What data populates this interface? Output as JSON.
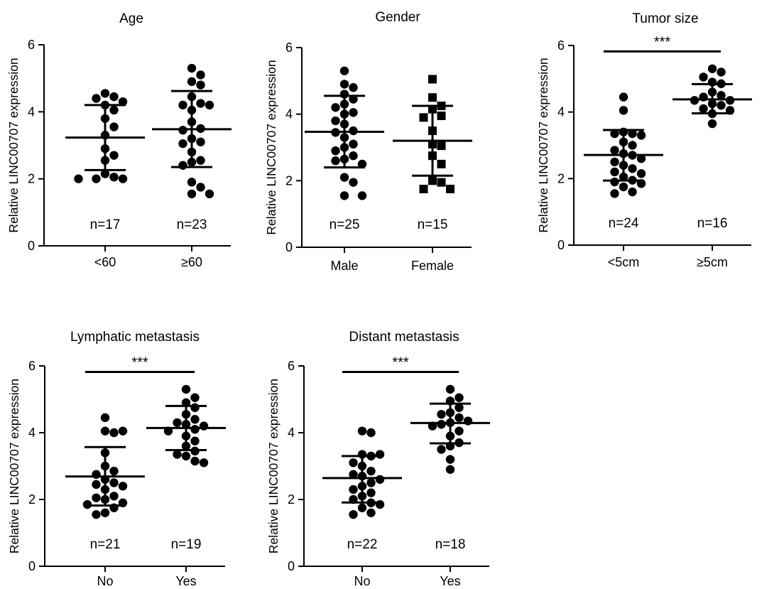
{
  "chart_data": [
    {
      "type": "scatter",
      "title": "Age",
      "ylabel": "Relative LINC00707 expression",
      "ylim": [
        0,
        6
      ],
      "yticks": [
        0,
        2,
        4,
        6
      ],
      "categories": [
        "<60",
        "≥60"
      ],
      "n_labels": [
        "n=17",
        "n=23"
      ],
      "marker": "circle",
      "significance": "",
      "groups": [
        {
          "values": [
            4.55,
            4.45,
            4.4,
            4.3,
            4.2,
            4.05,
            3.8,
            3.55,
            3.3,
            2.9,
            2.7,
            2.55,
            2.15,
            2.05,
            2.0,
            2.0,
            2.0
          ],
          "mean": 3.23,
          "sd_low": 2.26,
          "sd_high": 4.2
        },
        {
          "values": [
            5.3,
            5.1,
            4.9,
            4.8,
            4.45,
            4.25,
            4.2,
            4.2,
            4.05,
            3.7,
            3.5,
            3.45,
            3.2,
            3.1,
            3.05,
            2.8,
            2.55,
            2.5,
            2.4,
            1.9,
            1.75,
            1.55,
            1.55
          ],
          "mean": 3.48,
          "sd_low": 2.35,
          "sd_high": 4.62
        }
      ]
    },
    {
      "type": "scatter",
      "title": "Gender",
      "ylabel": "Relative LINC00707 expression",
      "ylim": [
        0,
        6
      ],
      "yticks": [
        0,
        2,
        4,
        6
      ],
      "categories": [
        "Male",
        "Female"
      ],
      "n_labels": [
        "n=25",
        "n=15"
      ],
      "marker": "mixed",
      "significance": "",
      "groups": [
        {
          "marker": "circle",
          "values": [
            5.3,
            4.9,
            4.8,
            4.6,
            4.45,
            4.3,
            4.2,
            4.05,
            4.0,
            3.8,
            3.7,
            3.5,
            3.45,
            3.3,
            3.1,
            3.0,
            2.9,
            2.75,
            2.65,
            2.6,
            2.5,
            2.1,
            1.95,
            1.55,
            1.55
          ],
          "mean": 3.47,
          "sd_low": 2.4,
          "sd_high": 4.55
        },
        {
          "marker": "square",
          "values": [
            5.05,
            4.5,
            4.25,
            4.15,
            3.95,
            3.9,
            3.5,
            3.1,
            3.05,
            2.75,
            2.5,
            2.0,
            1.95,
            1.75,
            1.75
          ],
          "mean": 3.2,
          "sd_low": 2.15,
          "sd_high": 4.25
        }
      ]
    },
    {
      "type": "scatter",
      "title": "Tumor size",
      "ylabel": "Relative LINC00707 expression",
      "ylim": [
        0,
        6
      ],
      "yticks": [
        0,
        2,
        4,
        6
      ],
      "categories": [
        "<5cm",
        "≥5cm"
      ],
      "n_labels": [
        "n=24",
        "n=16"
      ],
      "marker": "circle",
      "significance": "***",
      "groups": [
        {
          "values": [
            4.45,
            4.05,
            3.4,
            3.35,
            3.35,
            3.3,
            3.1,
            3.0,
            2.85,
            2.75,
            2.7,
            2.6,
            2.5,
            2.4,
            2.3,
            2.2,
            2.15,
            2.05,
            1.95,
            1.9,
            1.85,
            1.75,
            1.6,
            1.55
          ],
          "mean": 2.71,
          "sd_low": 1.94,
          "sd_high": 3.46
        },
        {
          "values": [
            5.3,
            5.2,
            5.05,
            4.9,
            4.85,
            4.6,
            4.5,
            4.45,
            4.35,
            4.35,
            4.25,
            4.2,
            4.1,
            4.05,
            3.95,
            3.65
          ],
          "mean": 4.38,
          "sd_low": 3.96,
          "sd_high": 4.84
        }
      ]
    },
    {
      "type": "scatter",
      "title": "Lymphatic metastasis",
      "ylabel": "Relative LINC00707 expression",
      "ylim": [
        0,
        6
      ],
      "yticks": [
        0,
        2,
        4,
        6
      ],
      "categories": [
        "No",
        "Yes"
      ],
      "n_labels": [
        "n=21",
        "n=19"
      ],
      "marker": "circle",
      "significance": "***",
      "groups": [
        {
          "values": [
            4.45,
            4.05,
            4.05,
            4.0,
            3.4,
            3.0,
            2.85,
            2.75,
            2.6,
            2.5,
            2.45,
            2.4,
            2.3,
            2.1,
            2.05,
            2.0,
            1.9,
            1.85,
            1.75,
            1.6,
            1.55
          ],
          "mean": 2.69,
          "sd_low": 1.82,
          "sd_high": 3.57
        },
        {
          "values": [
            5.3,
            5.05,
            4.9,
            4.75,
            4.55,
            4.4,
            4.3,
            4.25,
            4.2,
            4.1,
            4.05,
            3.9,
            3.75,
            3.6,
            3.45,
            3.35,
            3.3,
            3.15,
            3.1
          ],
          "mean": 4.14,
          "sd_low": 3.48,
          "sd_high": 4.8
        }
      ]
    },
    {
      "type": "scatter",
      "title": "Distant metastasis",
      "ylabel": "Relative LINC00707 expression",
      "ylim": [
        0,
        6
      ],
      "yticks": [
        0,
        2,
        4,
        6
      ],
      "categories": [
        "No",
        "Yes"
      ],
      "n_labels": [
        "n=22",
        "n=18"
      ],
      "marker": "circle",
      "significance": "***",
      "groups": [
        {
          "values": [
            4.05,
            4.0,
            3.35,
            3.35,
            3.3,
            3.1,
            3.0,
            2.85,
            2.75,
            2.7,
            2.6,
            2.5,
            2.4,
            2.3,
            2.2,
            2.1,
            2.0,
            1.9,
            1.85,
            1.75,
            1.6,
            1.55
          ],
          "mean": 2.64,
          "sd_low": 1.91,
          "sd_high": 3.3
        },
        {
          "values": [
            5.3,
            5.05,
            4.95,
            4.75,
            4.6,
            4.55,
            4.45,
            4.35,
            4.3,
            4.25,
            4.2,
            4.05,
            3.9,
            3.7,
            3.6,
            3.5,
            3.2,
            2.9
          ],
          "mean": 4.29,
          "sd_low": 3.68,
          "sd_high": 4.87
        }
      ]
    }
  ]
}
